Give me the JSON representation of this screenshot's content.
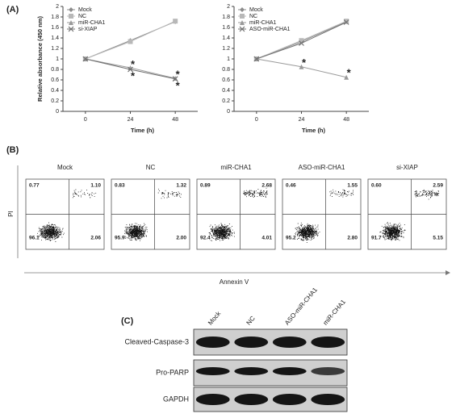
{
  "panels": [
    "(A)",
    "(B)",
    "(C)"
  ],
  "chart_data": [
    {
      "type": "line",
      "ylabel": "Relative absorbance (450 nm)",
      "xlabel": "Time (h)",
      "x": [
        0,
        24,
        48
      ],
      "xlim": [
        -12,
        60
      ],
      "xticks": [
        0,
        24,
        48
      ],
      "ylim": [
        0,
        2
      ],
      "yticks": [
        0,
        0.2,
        0.4,
        0.6,
        0.8,
        1,
        1.2,
        1.4,
        1.6,
        1.8,
        2
      ],
      "series": [
        {
          "name": "Mock",
          "color": "#8c8c8c",
          "marker": "diamond",
          "values": [
            1,
            1.35,
            1.71
          ]
        },
        {
          "name": "NC",
          "color": "#b8b8b8",
          "marker": "square",
          "values": [
            1,
            1.33,
            1.72
          ]
        },
        {
          "name": "miR-CHA1",
          "color": "#9a9a9a",
          "marker": "triangle",
          "values": [
            1,
            0.83,
            0.63
          ]
        },
        {
          "name": "si-XIAP",
          "color": "#707070",
          "marker": "cross",
          "values": [
            1,
            0.8,
            0.62
          ]
        }
      ],
      "annotations": [
        {
          "text": "*",
          "x": 24,
          "y": 0.93
        },
        {
          "text": "*",
          "x": 24,
          "y": 0.71
        },
        {
          "text": "*",
          "x": 48,
          "y": 0.74
        },
        {
          "text": "*",
          "x": 48,
          "y": 0.52
        }
      ]
    },
    {
      "type": "line",
      "xlabel": "Time (h)",
      "x": [
        0,
        24,
        48
      ],
      "xlim": [
        -12,
        60
      ],
      "xticks": [
        0,
        24,
        48
      ],
      "ylim": [
        0,
        2
      ],
      "yticks": [
        0,
        0.2,
        0.4,
        0.6,
        0.8,
        1,
        1.2,
        1.4,
        1.6,
        1.8,
        2
      ],
      "series": [
        {
          "name": "Mock",
          "color": "#8c8c8c",
          "marker": "diamond",
          "values": [
            1,
            1.33,
            1.71
          ]
        },
        {
          "name": "NC",
          "color": "#b8b8b8",
          "marker": "square",
          "values": [
            1,
            1.35,
            1.72
          ]
        },
        {
          "name": "miR-CHA1",
          "color": "#9a9a9a",
          "marker": "triangle",
          "values": [
            1,
            0.85,
            0.65
          ]
        },
        {
          "name": "ASO-miR-CHA1",
          "color": "#707070",
          "marker": "cross",
          "values": [
            1,
            1.3,
            1.7
          ]
        }
      ],
      "annotations": [
        {
          "text": "*",
          "x": 24,
          "y": 0.96
        },
        {
          "text": "*",
          "x": 48,
          "y": 0.77
        }
      ]
    }
  ],
  "flow": {
    "y_label": "PI",
    "x_label": "Annexin V",
    "plots": [
      {
        "title": "Mock",
        "quadrants": [
          "0.77",
          "1.10",
          "96.1",
          "2.06"
        ]
      },
      {
        "title": "NC",
        "quadrants": [
          "0.83",
          "1.32",
          "95.9",
          "2.00"
        ]
      },
      {
        "title": "miR-CHA1",
        "quadrants": [
          "0.89",
          "2.68",
          "92.4",
          "4.01"
        ]
      },
      {
        "title": "ASO-miR-CHA1",
        "quadrants": [
          "0.46",
          "1.55",
          "95.2",
          "2.80"
        ]
      },
      {
        "title": "si-XIAP",
        "quadrants": [
          "0.60",
          "2.59",
          "91.7",
          "5.15"
        ]
      }
    ]
  },
  "blot": {
    "lanes": [
      "Mock",
      "NC",
      "ASO-miR-CHA1",
      "miR-CHA1"
    ],
    "rows": [
      "Cleaved-Caspase-3",
      "Pro-PARP",
      "GAPDH"
    ]
  }
}
